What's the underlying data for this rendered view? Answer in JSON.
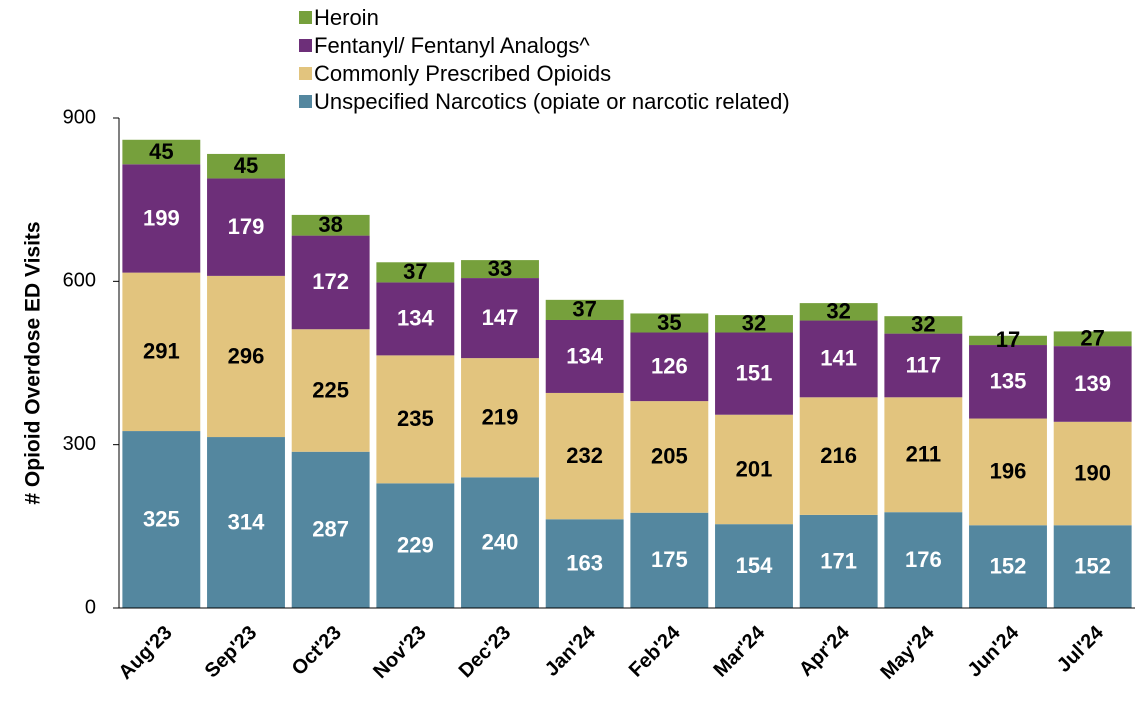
{
  "chart_data": {
    "type": "stacked_bar",
    "ylabel": "# Opioid Overdose ED Visits",
    "categories": [
      "Aug'23",
      "Sep'23",
      "Oct'23",
      "Nov'23",
      "Dec'23",
      "Jan'24",
      "Feb'24",
      "Mar'24",
      "Apr'24",
      "May'24",
      "Jun'24",
      "Jul'24"
    ],
    "series": [
      {
        "name": "Unspecified Narcotics (opiate or narcotic related)",
        "color": "#54879f",
        "label_color": "#ffffff",
        "values": [
          325,
          314,
          287,
          229,
          240,
          163,
          175,
          154,
          171,
          176,
          152,
          152
        ]
      },
      {
        "name": "Commonly Prescribed Opioids",
        "color": "#e2c47e",
        "label_color": "#000000",
        "values": [
          291,
          296,
          225,
          235,
          219,
          232,
          205,
          201,
          216,
          211,
          196,
          190
        ]
      },
      {
        "name": "Fentanyl/ Fentanyl Analogs^",
        "color": "#6d2f79",
        "label_color": "#ffffff",
        "values": [
          199,
          179,
          172,
          134,
          147,
          134,
          126,
          151,
          141,
          117,
          135,
          139
        ]
      },
      {
        "name": "Heroin",
        "color": "#76a03c",
        "label_color": "#000000",
        "values": [
          45,
          45,
          38,
          37,
          33,
          37,
          35,
          32,
          32,
          32,
          17,
          27
        ]
      }
    ],
    "ylim": [
      0,
      900
    ],
    "yticks": [
      0,
      300,
      600,
      900
    ],
    "grid": false
  }
}
